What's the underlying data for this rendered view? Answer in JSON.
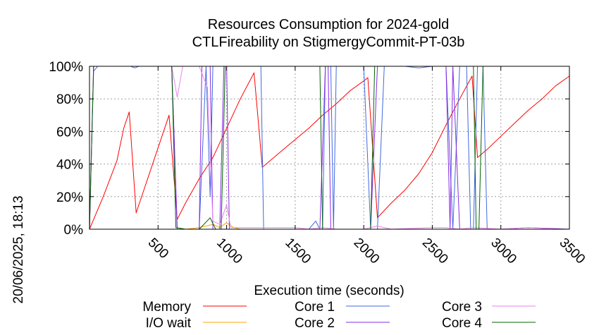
{
  "chart_data": {
    "type": "line",
    "title": "Resources Consumption for 2024-gold",
    "subtitle": "CTLFireability on StigmergyCommit-PT-03b",
    "xlabel": "Execution time (seconds)",
    "side_label": "20/06/2025, 18:13",
    "xlim": [
      0,
      3500
    ],
    "ylim": [
      0,
      100
    ],
    "x_ticks": [
      500,
      1000,
      1500,
      2000,
      2500,
      3000,
      3500
    ],
    "y_ticks": [
      0,
      20,
      40,
      60,
      80,
      100
    ],
    "y_tick_suffix": "%",
    "grid": true,
    "legend_placement": "bottom",
    "series": [
      {
        "name": "Memory",
        "color": "#ff0000",
        "points": [
          [
            0,
            0
          ],
          [
            100,
            20
          ],
          [
            200,
            42
          ],
          [
            250,
            62
          ],
          [
            290,
            72
          ],
          [
            340,
            10
          ],
          [
            580,
            70
          ],
          [
            640,
            6
          ],
          [
            700,
            16
          ],
          [
            800,
            31
          ],
          [
            900,
            44
          ],
          [
            1000,
            62
          ],
          [
            1100,
            80
          ],
          [
            1200,
            96
          ],
          [
            1260,
            38
          ],
          [
            1400,
            48
          ],
          [
            1500,
            55
          ],
          [
            1600,
            62
          ],
          [
            1700,
            70
          ],
          [
            1800,
            77
          ],
          [
            1900,
            85
          ],
          [
            2000,
            91
          ],
          [
            2030,
            93
          ],
          [
            2100,
            7
          ],
          [
            2200,
            16
          ],
          [
            2300,
            24
          ],
          [
            2400,
            34
          ],
          [
            2500,
            47
          ],
          [
            2600,
            64
          ],
          [
            2700,
            80
          ],
          [
            2790,
            94
          ],
          [
            2830,
            44
          ],
          [
            2900,
            49
          ],
          [
            3000,
            57
          ],
          [
            3100,
            65
          ],
          [
            3200,
            73
          ],
          [
            3300,
            80
          ],
          [
            3400,
            88
          ],
          [
            3500,
            94
          ]
        ]
      },
      {
        "name": "I/O wait",
        "color": "#ffa500",
        "points": [
          [
            0,
            0
          ],
          [
            600,
            0
          ],
          [
            700,
            0
          ],
          [
            800,
            1
          ],
          [
            850,
            2
          ],
          [
            900,
            3
          ],
          [
            950,
            1
          ],
          [
            1000,
            4
          ],
          [
            1050,
            1
          ],
          [
            1100,
            0
          ],
          [
            1500,
            0
          ],
          [
            2000,
            0
          ],
          [
            2500,
            0
          ],
          [
            3000,
            0
          ],
          [
            3500,
            0
          ]
        ]
      },
      {
        "name": "Core 1",
        "color": "#4169e1",
        "points": [
          [
            0,
            0
          ],
          [
            30,
            97
          ],
          [
            60,
            100
          ],
          [
            300,
            100
          ],
          [
            330,
            99
          ],
          [
            360,
            100
          ],
          [
            600,
            100
          ],
          [
            640,
            0
          ],
          [
            800,
            0
          ],
          [
            850,
            100
          ],
          [
            880,
            20
          ],
          [
            900,
            100
          ],
          [
            1000,
            100
          ],
          [
            1100,
            100
          ],
          [
            1200,
            100
          ],
          [
            1250,
            100
          ],
          [
            1270,
            0
          ],
          [
            1500,
            0
          ],
          [
            1600,
            0
          ],
          [
            1650,
            5
          ],
          [
            1680,
            0
          ],
          [
            1700,
            0
          ],
          [
            1720,
            100
          ],
          [
            1760,
            100
          ],
          [
            1780,
            0
          ],
          [
            1800,
            100
          ],
          [
            2000,
            100
          ],
          [
            2050,
            0
          ],
          [
            2100,
            0
          ],
          [
            2150,
            100
          ],
          [
            2300,
            100
          ],
          [
            2400,
            99
          ],
          [
            2500,
            100
          ],
          [
            2600,
            100
          ],
          [
            2650,
            0
          ],
          [
            2700,
            100
          ],
          [
            2750,
            100
          ],
          [
            2780,
            0
          ],
          [
            2800,
            0
          ],
          [
            2830,
            100
          ],
          [
            2870,
            100
          ],
          [
            2900,
            0
          ],
          [
            3100,
            0
          ],
          [
            3300,
            0
          ],
          [
            3500,
            0
          ]
        ]
      },
      {
        "name": "Core 2",
        "color": "#8a2be2",
        "points": [
          [
            0,
            0
          ],
          [
            30,
            100
          ],
          [
            600,
            100
          ],
          [
            640,
            0
          ],
          [
            800,
            0
          ],
          [
            820,
            100
          ],
          [
            880,
            100
          ],
          [
            900,
            0
          ],
          [
            950,
            0
          ],
          [
            980,
            100
          ],
          [
            1000,
            100
          ],
          [
            1020,
            0
          ],
          [
            1200,
            0
          ],
          [
            1500,
            0
          ],
          [
            1600,
            0
          ],
          [
            1680,
            0
          ],
          [
            1720,
            100
          ],
          [
            1740,
            100
          ],
          [
            1760,
            0
          ],
          [
            1800,
            0
          ],
          [
            2000,
            0
          ],
          [
            2050,
            0
          ],
          [
            2100,
            100
          ],
          [
            2500,
            100
          ],
          [
            2600,
            100
          ],
          [
            2630,
            0
          ],
          [
            2650,
            100
          ],
          [
            2700,
            0
          ],
          [
            2800,
            0
          ],
          [
            3000,
            0
          ],
          [
            3200,
            1
          ],
          [
            3500,
            0
          ]
        ]
      },
      {
        "name": "Core 3",
        "color": "#ee82ee",
        "points": [
          [
            0,
            0
          ],
          [
            30,
            100
          ],
          [
            600,
            100
          ],
          [
            640,
            81
          ],
          [
            680,
            100
          ],
          [
            800,
            100
          ],
          [
            860,
            87
          ],
          [
            900,
            5
          ],
          [
            950,
            3
          ],
          [
            1000,
            15
          ],
          [
            1030,
            1
          ],
          [
            1100,
            1
          ],
          [
            1500,
            1
          ],
          [
            1600,
            0
          ],
          [
            1700,
            1
          ],
          [
            1800,
            0
          ],
          [
            2000,
            0
          ],
          [
            2100,
            2
          ],
          [
            2200,
            0
          ],
          [
            2500,
            1
          ],
          [
            2600,
            1
          ],
          [
            2700,
            0
          ],
          [
            2800,
            1
          ],
          [
            3000,
            0
          ],
          [
            3200,
            1
          ],
          [
            3400,
            0
          ],
          [
            3500,
            0
          ]
        ]
      },
      {
        "name": "Core 4",
        "color": "#006400",
        "points": [
          [
            0,
            0
          ],
          [
            30,
            100
          ],
          [
            600,
            100
          ],
          [
            630,
            1
          ],
          [
            700,
            0
          ],
          [
            800,
            0
          ],
          [
            880,
            7
          ],
          [
            920,
            0
          ],
          [
            960,
            0
          ],
          [
            990,
            100
          ],
          [
            1000,
            100
          ],
          [
            1600,
            100
          ],
          [
            1680,
            100
          ],
          [
            1700,
            0
          ],
          [
            2050,
            0
          ],
          [
            2080,
            100
          ],
          [
            2500,
            100
          ],
          [
            2800,
            100
          ],
          [
            2820,
            0
          ],
          [
            2840,
            0
          ],
          [
            2870,
            100
          ],
          [
            3500,
            100
          ]
        ]
      }
    ]
  }
}
